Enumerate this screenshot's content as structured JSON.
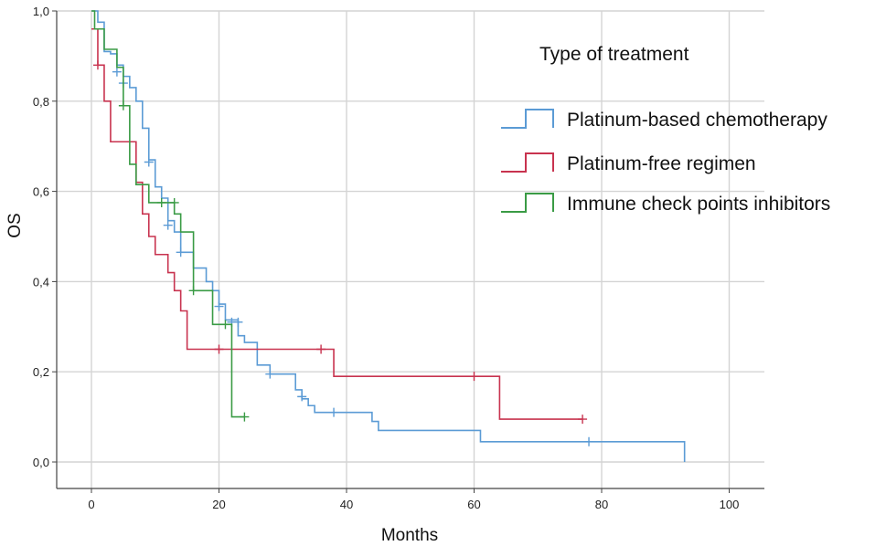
{
  "chart_data": {
    "type": "line",
    "subtype": "kaplan-meier-step",
    "xlabel": "Months",
    "ylabel": "OS",
    "xlim": [
      0,
      105
    ],
    "ylim": [
      0,
      1.0
    ],
    "x_ticks": [
      0,
      20,
      40,
      60,
      80,
      100
    ],
    "y_ticks": [
      0.0,
      0.2,
      0.4,
      0.6,
      0.8,
      1.0
    ],
    "x_tick_labels": [
      "0",
      "20",
      "40",
      "60",
      "80",
      "100"
    ],
    "y_tick_labels": [
      "0,0",
      "0,2",
      "0,4",
      "0,6",
      "0,8",
      "1,0"
    ],
    "grid": true,
    "legend": {
      "title": "Type of treatment",
      "placement": "top-right"
    },
    "series": [
      {
        "name": "Platinum-based chemotherapy",
        "color": "#5b9bd5",
        "steps": [
          [
            0,
            1.0
          ],
          [
            1,
            0.975
          ],
          [
            2,
            0.91
          ],
          [
            3,
            0.905
          ],
          [
            4,
            0.88
          ],
          [
            5,
            0.855
          ],
          [
            6,
            0.83
          ],
          [
            7,
            0.8
          ],
          [
            8,
            0.74
          ],
          [
            9,
            0.67
          ],
          [
            10,
            0.61
          ],
          [
            11,
            0.585
          ],
          [
            12,
            0.535
          ],
          [
            13,
            0.51
          ],
          [
            14,
            0.465
          ],
          [
            16,
            0.43
          ],
          [
            18,
            0.4
          ],
          [
            19,
            0.38
          ],
          [
            20,
            0.35
          ],
          [
            21,
            0.315
          ],
          [
            23,
            0.28
          ],
          [
            24,
            0.265
          ],
          [
            26,
            0.215
          ],
          [
            28,
            0.195
          ],
          [
            30,
            0.195
          ],
          [
            32,
            0.16
          ],
          [
            33,
            0.14
          ],
          [
            34,
            0.125
          ],
          [
            35,
            0.11
          ],
          [
            40,
            0.11
          ],
          [
            44,
            0.09
          ],
          [
            45,
            0.07
          ],
          [
            55,
            0.07
          ],
          [
            61,
            0.045
          ],
          [
            75,
            0.045
          ],
          [
            93,
            0.045
          ],
          [
            93,
            0.0
          ]
        ],
        "censored": [
          [
            4,
            0.865
          ],
          [
            5,
            0.84
          ],
          [
            9,
            0.665
          ],
          [
            12,
            0.525
          ],
          [
            14,
            0.465
          ],
          [
            20,
            0.345
          ],
          [
            22,
            0.31
          ],
          [
            23,
            0.31
          ],
          [
            28,
            0.195
          ],
          [
            33,
            0.145
          ],
          [
            38,
            0.11
          ],
          [
            78,
            0.045
          ]
        ]
      },
      {
        "name": "Platinum-free regimen",
        "color": "#c8334f",
        "steps": [
          [
            0,
            0.96
          ],
          [
            1,
            0.88
          ],
          [
            2,
            0.8
          ],
          [
            3,
            0.71
          ],
          [
            7,
            0.62
          ],
          [
            8,
            0.55
          ],
          [
            9,
            0.5
          ],
          [
            10,
            0.46
          ],
          [
            12,
            0.42
          ],
          [
            13,
            0.38
          ],
          [
            14,
            0.335
          ],
          [
            15,
            0.25
          ],
          [
            38,
            0.19
          ],
          [
            64,
            0.095
          ],
          [
            77,
            0.095
          ]
        ],
        "censored": [
          [
            1,
            0.88
          ],
          [
            20,
            0.25
          ],
          [
            36,
            0.25
          ],
          [
            60,
            0.19
          ],
          [
            77,
            0.095
          ]
        ]
      },
      {
        "name": "Immune check points inhibitors",
        "color": "#3a9b45",
        "steps": [
          [
            0,
            1.0
          ],
          [
            0.5,
            0.96
          ],
          [
            2,
            0.915
          ],
          [
            4,
            0.875
          ],
          [
            5,
            0.79
          ],
          [
            6,
            0.66
          ],
          [
            7,
            0.615
          ],
          [
            9,
            0.575
          ],
          [
            13,
            0.55
          ],
          [
            14,
            0.51
          ],
          [
            16,
            0.38
          ],
          [
            19,
            0.345
          ],
          [
            19,
            0.305
          ],
          [
            22,
            0.305
          ],
          [
            22,
            0.1
          ],
          [
            24,
            0.1
          ]
        ],
        "censored": [
          [
            5,
            0.79
          ],
          [
            11,
            0.575
          ],
          [
            13,
            0.575
          ],
          [
            16,
            0.38
          ],
          [
            21,
            0.305
          ],
          [
            24,
            0.1
          ]
        ]
      }
    ]
  }
}
